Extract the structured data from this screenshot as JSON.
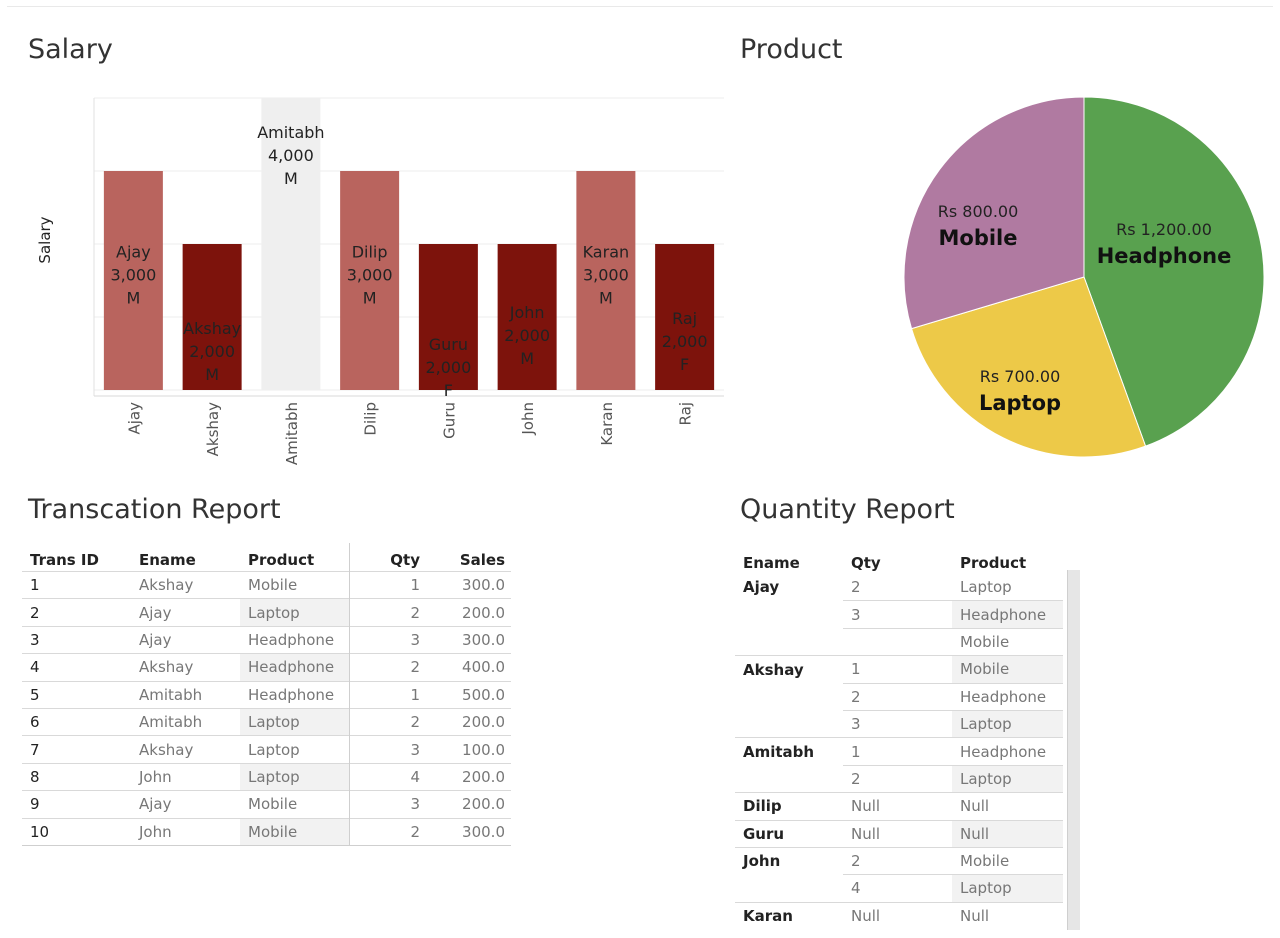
{
  "salary": {
    "title": "Salary",
    "chart_data": {
      "type": "bar",
      "ylabel": "Salary",
      "ylim": [
        0,
        4000
      ],
      "categories": [
        "Ajay",
        "Akshay",
        "Amitabh",
        "Dilip",
        "Guru",
        "John",
        "Karan",
        "Raj"
      ],
      "values": [
        3000,
        2000,
        4000,
        3000,
        2000,
        2000,
        3000,
        2000
      ],
      "genders": [
        "M",
        "M",
        "M",
        "M",
        "F",
        "M",
        "M",
        "F"
      ],
      "value_labels": [
        "3,000",
        "2,000",
        "4,000",
        "3,000",
        "2,000",
        "2,000",
        "3,000",
        "2,000"
      ],
      "colors": {
        "M_3000": "#b9645e",
        "dark": "#7d130c",
        "highlight": "#efefef"
      },
      "bar_colors": [
        "#b9645e",
        "#7d130c",
        "#efefef",
        "#b9645e",
        "#7d130c",
        "#7d130c",
        "#b9645e",
        "#7d130c"
      ],
      "grid": true
    }
  },
  "product": {
    "title": "Product",
    "chart_data": {
      "type": "pie",
      "slices": [
        {
          "label": "Headphone",
          "amount": "Rs 1,200.00",
          "value": 1200,
          "color": "#59a14f"
        },
        {
          "label": "Laptop",
          "amount": "Rs 700.00",
          "value": 700,
          "color": "#edc948"
        },
        {
          "label": "Mobile",
          "amount": "Rs 800.00",
          "value": 800,
          "color": "#b07aa1"
        }
      ]
    }
  },
  "transaction": {
    "title": "Transcation Report",
    "headers": [
      "Trans ID",
      "Ename",
      "Product",
      "Qty",
      "Sales"
    ],
    "rows": [
      [
        "1",
        "Akshay",
        "Mobile",
        "1",
        "300.0"
      ],
      [
        "2",
        "Ajay",
        "Laptop",
        "2",
        "200.0"
      ],
      [
        "3",
        "Ajay",
        "Headphone",
        "3",
        "300.0"
      ],
      [
        "4",
        "Akshay",
        "Headphone",
        "2",
        "400.0"
      ],
      [
        "5",
        "Amitabh",
        "Headphone",
        "1",
        "500.0"
      ],
      [
        "6",
        "Amitabh",
        "Laptop",
        "2",
        "200.0"
      ],
      [
        "7",
        "Akshay",
        "Laptop",
        "3",
        "100.0"
      ],
      [
        "8",
        "John",
        "Laptop",
        "4",
        "200.0"
      ],
      [
        "9",
        "Ajay",
        "Mobile",
        "3",
        "200.0"
      ],
      [
        "10",
        "John",
        "Mobile",
        "2",
        "300.0"
      ]
    ]
  },
  "quantity": {
    "title": "Quantity Report",
    "headers": [
      "Ename",
      "Qty",
      "Product"
    ],
    "rows": [
      [
        "Ajay",
        "2",
        "Laptop"
      ],
      [
        "",
        "3",
        "Headphone"
      ],
      [
        "",
        "",
        "Mobile"
      ],
      [
        "Akshay",
        "1",
        "Mobile"
      ],
      [
        "",
        "2",
        "Headphone"
      ],
      [
        "",
        "3",
        "Laptop"
      ],
      [
        "Amitabh",
        "1",
        "Headphone"
      ],
      [
        "",
        "2",
        "Laptop"
      ],
      [
        "Dilip",
        "Null",
        "Null"
      ],
      [
        "Guru",
        "Null",
        "Null"
      ],
      [
        "John",
        "2",
        "Mobile"
      ],
      [
        "",
        "4",
        "Laptop"
      ],
      [
        "Karan",
        "Null",
        "Null"
      ]
    ]
  }
}
